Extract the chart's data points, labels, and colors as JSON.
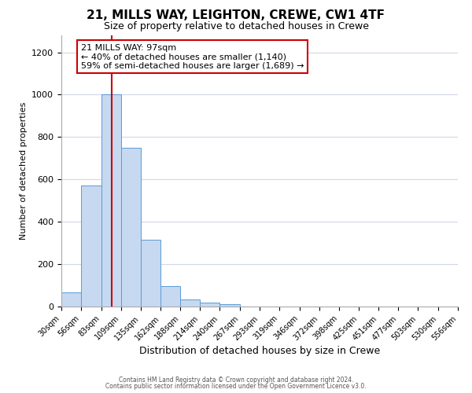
{
  "title": "21, MILLS WAY, LEIGHTON, CREWE, CW1 4TF",
  "subtitle": "Size of property relative to detached houses in Crewe",
  "xlabel": "Distribution of detached houses by size in Crewe",
  "ylabel": "Number of detached properties",
  "bin_edges": [
    30,
    56,
    83,
    109,
    135,
    162,
    188,
    214,
    240,
    267,
    293,
    319,
    346,
    372,
    398,
    425,
    451,
    477,
    503,
    530,
    556
  ],
  "bar_heights": [
    65,
    570,
    1000,
    750,
    315,
    95,
    35,
    20,
    10,
    0,
    0,
    0,
    0,
    0,
    0,
    0,
    0,
    0,
    0,
    0
  ],
  "bar_color": "#c6d9f0",
  "bar_edge_color": "#5b9bd5",
  "vline_color": "#cc0000",
  "vline_x": 97,
  "annotation_title": "21 MILLS WAY: 97sqm",
  "annotation_line1": "← 40% of detached houses are smaller (1,140)",
  "annotation_line2": "59% of semi-detached houses are larger (1,689) →",
  "annotation_box_color": "#ffffff",
  "annotation_box_edge": "#cc0000",
  "ylim": [
    0,
    1280
  ],
  "yticks": [
    0,
    200,
    400,
    600,
    800,
    1000,
    1200
  ],
  "footer_line1": "Contains HM Land Registry data © Crown copyright and database right 2024.",
  "footer_line2": "Contains public sector information licensed under the Open Government Licence v3.0.",
  "background_color": "#ffffff",
  "grid_color": "#d0d8e8",
  "title_fontsize": 11,
  "subtitle_fontsize": 9
}
